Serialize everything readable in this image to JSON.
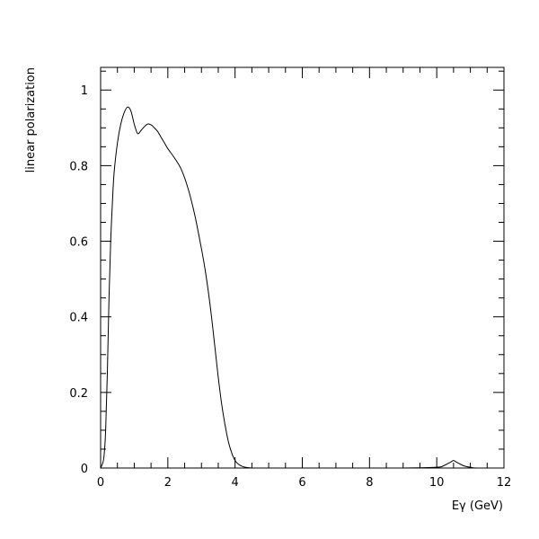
{
  "chart_data": {
    "type": "line",
    "title": "",
    "xlabel": "Eγ (GeV)",
    "ylabel": "linear polarization",
    "xlim": [
      0,
      12
    ],
    "ylim": [
      0,
      1.06
    ],
    "grid": false,
    "x_ticks": [
      0,
      2,
      4,
      6,
      8,
      10,
      12
    ],
    "x_tick_labels": [
      "0",
      "2",
      "4",
      "6",
      "8",
      "10",
      "12"
    ],
    "y_ticks": [
      0,
      0.2,
      0.4,
      0.6,
      0.8,
      1
    ],
    "y_tick_labels": [
      "0",
      "0.2",
      "0.4",
      "0.6",
      "0.8",
      "1"
    ],
    "series": [
      {
        "color": "#000000",
        "x": [
          0.0,
          0.05,
          0.1,
          0.15,
          0.2,
          0.25,
          0.3,
          0.35,
          0.4,
          0.5,
          0.6,
          0.7,
          0.8,
          0.9,
          1.0,
          1.1,
          1.2,
          1.3,
          1.4,
          1.5,
          1.6,
          1.7,
          1.8,
          1.9,
          2.0,
          2.2,
          2.4,
          2.6,
          2.8,
          3.0,
          3.1,
          3.2,
          3.3,
          3.4,
          3.5,
          3.6,
          3.7,
          3.8,
          3.9,
          4.0,
          4.1,
          4.2,
          4.3,
          4.5,
          4.7,
          5.0,
          6.0,
          7.0,
          8.0,
          9.0,
          10.0,
          10.2,
          10.4,
          10.5,
          10.6,
          10.8,
          11.0,
          11.2,
          12.0
        ],
        "y": [
          0.0,
          0.01,
          0.03,
          0.1,
          0.25,
          0.45,
          0.6,
          0.7,
          0.78,
          0.86,
          0.91,
          0.94,
          0.955,
          0.945,
          0.91,
          0.885,
          0.893,
          0.903,
          0.91,
          0.908,
          0.9,
          0.89,
          0.875,
          0.86,
          0.845,
          0.82,
          0.79,
          0.74,
          0.67,
          0.58,
          0.53,
          0.47,
          0.4,
          0.32,
          0.24,
          0.17,
          0.115,
          0.07,
          0.04,
          0.02,
          0.01,
          0.005,
          0.002,
          0.0,
          0.0,
          0.0,
          0.0,
          0.0,
          0.0,
          0.0,
          0.002,
          0.006,
          0.015,
          0.02,
          0.015,
          0.006,
          0.002,
          0.0,
          0.0
        ]
      }
    ]
  }
}
